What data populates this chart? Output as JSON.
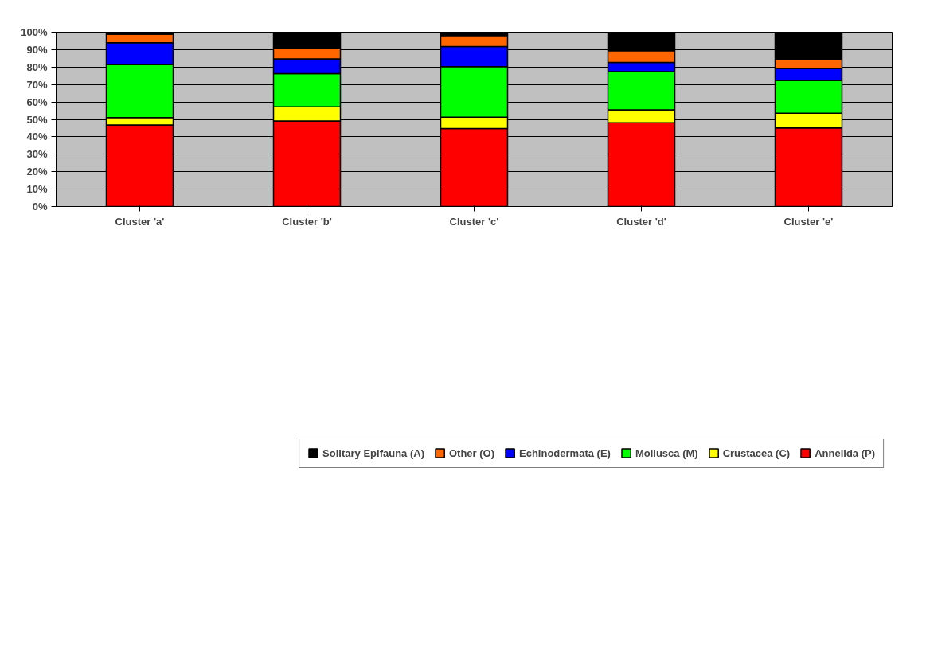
{
  "chart_data": {
    "type": "bar",
    "stacked": true,
    "categories": [
      "Cluster 'a'",
      "Cluster 'b'",
      "Cluster 'c'",
      "Cluster 'd'",
      "Cluster 'e'"
    ],
    "series": [
      {
        "name": "Annelida (P)",
        "color": "#ff0000",
        "values": [
          46.8,
          49.1,
          44.7,
          48.1,
          45.1
        ]
      },
      {
        "name": "Crustacea (C)",
        "color": "#ffff00",
        "values": [
          4.2,
          8.1,
          6.6,
          7.4,
          8.4
        ]
      },
      {
        "name": "Mollusca (M)",
        "color": "#00ff00",
        "values": [
          30.5,
          19.0,
          28.9,
          21.9,
          18.9
        ]
      },
      {
        "name": "Echinodermata (E)",
        "color": "#0000ff",
        "values": [
          12.4,
          8.5,
          11.6,
          5.2,
          6.8
        ]
      },
      {
        "name": "Other (O)",
        "color": "#ff6600",
        "values": [
          5.0,
          6.2,
          6.3,
          6.8,
          5.3
        ]
      },
      {
        "name": "Solitary Epifauna (A)",
        "color": "#000000",
        "values": [
          1.1,
          9.1,
          1.9,
          10.6,
          15.5
        ]
      }
    ],
    "ylim": [
      0,
      100
    ],
    "yticks": [
      {
        "value": 0,
        "label": "0%"
      },
      {
        "value": 10,
        "label": "10%"
      },
      {
        "value": 20,
        "label": "20%"
      },
      {
        "value": 30,
        "label": "30%"
      },
      {
        "value": 40,
        "label": "40%"
      },
      {
        "value": 50,
        "label": "50%"
      },
      {
        "value": 60,
        "label": "60%"
      },
      {
        "value": 70,
        "label": "70%"
      },
      {
        "value": 80,
        "label": "80%"
      },
      {
        "value": 90,
        "label": "90%"
      },
      {
        "value": 100,
        "label": "100%"
      }
    ],
    "grid": "y",
    "legend": "bottom"
  }
}
